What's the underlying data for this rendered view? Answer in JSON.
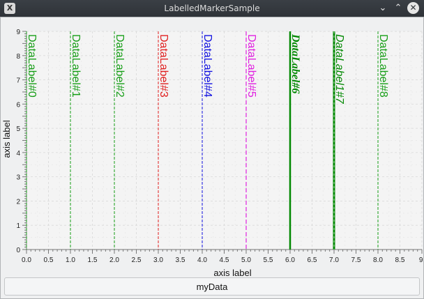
{
  "window": {
    "title": "LabelledMarkerSample",
    "app_icon_glyph": "X",
    "minimize_glyph": "⌄",
    "maximize_glyph": "⌃",
    "close_glyph": "✕"
  },
  "legend": {
    "label": "myData"
  },
  "chart_data": {
    "type": "line",
    "xlabel": "axis label",
    "ylabel": "axis label",
    "xlim": [
      0,
      9
    ],
    "ylim": [
      0,
      9
    ],
    "grid": true,
    "x_ticks": [
      "0.0",
      "0.5",
      "1.0",
      "1.5",
      "2.0",
      "2.5",
      "3.0",
      "3.5",
      "4.0",
      "4.5",
      "5.0",
      "5.5",
      "6.0",
      "6.5",
      "7.0",
      "7.5",
      "8.0",
      "8.5",
      "9."
    ],
    "y_ticks": [
      "0",
      "1",
      "2",
      "3",
      "4",
      "5",
      "6",
      "7",
      "8",
      "9"
    ],
    "legend": "bottom",
    "series_name": "myData",
    "markers": [
      {
        "x": 0,
        "label": "DataLabel#0",
        "color": "#169e16",
        "style": "plain"
      },
      {
        "x": 1,
        "label": "DataLabel#1",
        "color": "#169e16",
        "style": "plain"
      },
      {
        "x": 2,
        "label": "DataLabel#2",
        "color": "#169e16",
        "style": "plain"
      },
      {
        "x": 3,
        "label": "DataLabel#3",
        "color": "#e02020",
        "style": "plain"
      },
      {
        "x": 4,
        "label": "DataLabel#4",
        "color": "#1010e0",
        "style": "plain"
      },
      {
        "x": 5,
        "label": "DataLabel#5",
        "color": "#e020e0",
        "style": "dashed"
      },
      {
        "x": 6,
        "label": "DataLabel#6",
        "color": "#008800",
        "style": "bold-italic-serif"
      },
      {
        "x": 7,
        "label": "DataLabel1#7",
        "color": "#008800",
        "style": "thick-italic"
      },
      {
        "x": 8,
        "label": "DataLabel#8",
        "color": "#169e16",
        "style": "plain"
      }
    ]
  }
}
